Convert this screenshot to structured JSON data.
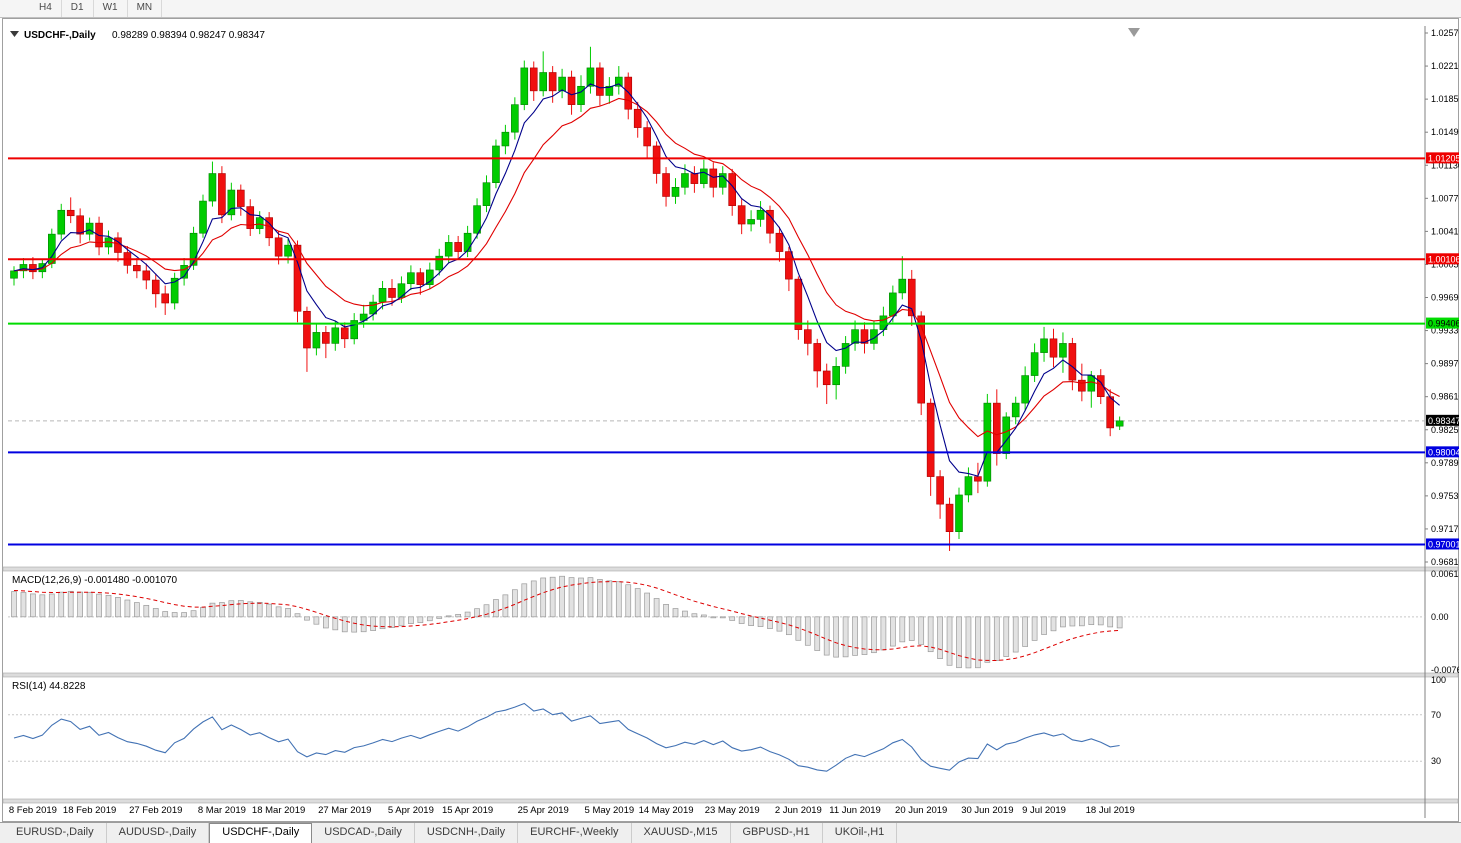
{
  "toolbar": {
    "timeframes": [
      "H4",
      "D1",
      "W1",
      "MN"
    ]
  },
  "chart": {
    "symbol_title": "USDCHF-,Daily",
    "ohlc_line": "0.98289 0.98394 0.98247 0.98347"
  },
  "chart_data": {
    "type": "candlestick",
    "symbol": "USDCHF",
    "timeframe": "Daily",
    "title": "USDCHF-,Daily",
    "current_bar": {
      "open": 0.98289,
      "high": 0.98394,
      "low": 0.98247,
      "close": 0.98347
    },
    "up_color": "#00CC00",
    "down_color": "#F01010",
    "y_axis": {
      "min": 0.9681,
      "max": 1.0257,
      "ticks": [
        "1.02570",
        "1.02210",
        "1.01850",
        "1.01490",
        "1.01130",
        "1.00770",
        "1.00410",
        "1.00050",
        "0.99690",
        "0.99330",
        "0.98970",
        "0.98610",
        "0.98250",
        "0.97890",
        "0.97530",
        "0.97170",
        "0.96810"
      ]
    },
    "x_axis_labels": [
      {
        "text": "8 Feb 2019",
        "i": 2
      },
      {
        "text": "18 Feb 2019",
        "i": 8
      },
      {
        "text": "27 Feb 2019",
        "i": 15
      },
      {
        "text": "8 Mar 2019",
        "i": 22
      },
      {
        "text": "18 Mar 2019",
        "i": 28
      },
      {
        "text": "27 Mar 2019",
        "i": 35
      },
      {
        "text": "5 Apr 2019",
        "i": 42
      },
      {
        "text": "15 Apr 2019",
        "i": 48
      },
      {
        "text": "25 Apr 2019",
        "i": 56
      },
      {
        "text": "5 May 2019",
        "i": 63
      },
      {
        "text": "14 May 2019",
        "i": 69
      },
      {
        "text": "23 May 2019",
        "i": 76
      },
      {
        "text": "2 Jun 2019",
        "i": 83
      },
      {
        "text": "11 Jun 2019",
        "i": 89
      },
      {
        "text": "20 Jun 2019",
        "i": 96
      },
      {
        "text": "30 Jun 2019",
        "i": 103
      },
      {
        "text": "9 Jul 2019",
        "i": 109
      },
      {
        "text": "18 Jul 2019",
        "i": 116
      }
    ],
    "moving_averages": [
      {
        "name": "fast",
        "period": 5,
        "color": "#00008B"
      },
      {
        "name": "slow",
        "period": 11,
        "color": "#E00000"
      }
    ],
    "levels": [
      {
        "value": 1.01205,
        "label": "1.01205",
        "color": "#EE0000",
        "text_color": "#FFFFFF",
        "kind": "resistance"
      },
      {
        "value": 1.00106,
        "label": "1.00106",
        "color": "#EE0000",
        "text_color": "#FFFFFF",
        "kind": "resistance"
      },
      {
        "value": 0.99406,
        "label": "0.99406",
        "color": "#00DC00",
        "text_color": "#000000",
        "kind": "pivot"
      },
      {
        "value": 0.98004,
        "label": "0.98004",
        "color": "#0000E0",
        "text_color": "#FFFFFF",
        "kind": "support"
      },
      {
        "value": 0.97001,
        "label": "0.97001",
        "color": "#0000E0",
        "text_color": "#FFFFFF",
        "kind": "support"
      }
    ],
    "current_price": {
      "value": 0.98347,
      "label": "0.98347",
      "bg": "#000000",
      "text_color": "#FFFFFF"
    },
    "macd": {
      "label": "MACD(12,26,9) -0.001480 -0.001070",
      "fast": 12,
      "slow": 26,
      "signal": 9,
      "value": -0.00148,
      "signal_value": -0.00107,
      "axis_ticks": [
        "0.00613",
        "0.00",
        "-0.00761"
      ],
      "range": [
        -0.00761,
        0.00613
      ],
      "hist_color": "#E2E2E2",
      "signal_color": "#DD0000"
    },
    "rsi": {
      "label": "RSI(14) 44.8228",
      "period": 14,
      "value": 44.8228,
      "axis_ticks": [
        "100",
        "70",
        "30"
      ],
      "levels": [
        70,
        30
      ],
      "range": [
        0,
        100
      ],
      "line_color": "#4272B4"
    },
    "candles": [
      [
        0.999,
        1.0003,
        0.9982,
        0.9998
      ],
      [
        0.9998,
        1.0012,
        0.999,
        1.0005
      ],
      [
        1.0005,
        1.0013,
        0.9989,
        0.9997
      ],
      [
        0.9997,
        1.001,
        0.999,
        1.0006
      ],
      [
        1.0006,
        1.0044,
        1.0001,
        1.0038
      ],
      [
        1.0038,
        1.0071,
        1.0032,
        1.0064
      ],
      [
        1.0064,
        1.0078,
        1.005,
        1.0058
      ],
      [
        1.0058,
        1.0066,
        1.0028,
        1.0038
      ],
      [
        1.0038,
        1.0056,
        1.0031,
        1.005
      ],
      [
        1.005,
        1.0057,
        1.0015,
        1.0024
      ],
      [
        1.0024,
        1.0042,
        1.0016,
        1.0034
      ],
      [
        1.0034,
        1.004,
        1.0008,
        1.0018
      ],
      [
        1.0018,
        1.0025,
        0.9995,
        1.0004
      ],
      [
        1.0004,
        1.0012,
        0.999,
        0.9998
      ],
      [
        0.9998,
        1.0006,
        0.9978,
        0.9988
      ],
      [
        0.9988,
        0.9995,
        0.9958,
        0.9973
      ],
      [
        0.9973,
        0.9982,
        0.995,
        0.9963
      ],
      [
        0.9963,
        0.9996,
        0.9956,
        0.999
      ],
      [
        0.999,
        1.0012,
        0.9982,
        1.0004
      ],
      [
        1.0004,
        1.0046,
        0.9999,
        1.0039
      ],
      [
        1.0039,
        1.0081,
        1.0034,
        1.0074
      ],
      [
        1.0074,
        1.0117,
        1.0068,
        1.0104
      ],
      [
        1.0104,
        1.0112,
        1.005,
        1.0059
      ],
      [
        1.0059,
        1.0094,
        1.0053,
        1.0086
      ],
      [
        1.0086,
        1.0092,
        1.0058,
        1.0068
      ],
      [
        1.0068,
        1.0076,
        1.0036,
        1.0044
      ],
      [
        1.0044,
        1.0063,
        1.0038,
        1.0056
      ],
      [
        1.0056,
        1.0062,
        1.0025,
        1.0034
      ],
      [
        1.0034,
        1.0041,
        1.0005,
        1.0014
      ],
      [
        1.0014,
        1.0033,
        1.0006,
        1.0026
      ],
      [
        1.0026,
        1.0031,
        0.9942,
        0.9954
      ],
      [
        0.9954,
        0.9959,
        0.9888,
        0.9914
      ],
      [
        0.9914,
        0.9941,
        0.9906,
        0.9931
      ],
      [
        0.9931,
        0.9938,
        0.9903,
        0.9919
      ],
      [
        0.9919,
        0.9944,
        0.9911,
        0.9936
      ],
      [
        0.9936,
        0.9942,
        0.9914,
        0.9924
      ],
      [
        0.9924,
        0.9952,
        0.9918,
        0.9944
      ],
      [
        0.9944,
        0.9961,
        0.9936,
        0.9951
      ],
      [
        0.9951,
        0.9972,
        0.9944,
        0.9964
      ],
      [
        0.9964,
        0.9987,
        0.9956,
        0.9979
      ],
      [
        0.9979,
        0.9989,
        0.996,
        0.9969
      ],
      [
        0.9969,
        0.9992,
        0.9963,
        0.9984
      ],
      [
        0.9984,
        1.0004,
        0.9977,
        0.9996
      ],
      [
        0.9996,
        1.0001,
        0.9972,
        0.9983
      ],
      [
        0.9983,
        1.0007,
        0.9978,
        0.9999
      ],
      [
        0.9999,
        1.0022,
        0.9993,
        1.0014
      ],
      [
        1.0014,
        1.0037,
        1.0007,
        1.0029
      ],
      [
        1.0029,
        1.0036,
        1.001,
        1.0019
      ],
      [
        1.0019,
        1.0047,
        1.0013,
        1.0039
      ],
      [
        1.0039,
        1.0077,
        1.0033,
        1.0069
      ],
      [
        1.0069,
        1.0102,
        1.0062,
        1.0094
      ],
      [
        1.0094,
        1.0141,
        1.0088,
        1.0134
      ],
      [
        1.0134,
        1.0157,
        1.0125,
        1.0149
      ],
      [
        1.0149,
        1.0187,
        1.0141,
        1.0179
      ],
      [
        1.0179,
        1.0227,
        1.0173,
        1.0219
      ],
      [
        1.0219,
        1.0226,
        1.0183,
        1.0194
      ],
      [
        1.0194,
        1.0237,
        1.0188,
        1.0214
      ],
      [
        1.0214,
        1.0221,
        1.0181,
        1.0194
      ],
      [
        1.0194,
        1.0218,
        1.0186,
        1.0209
      ],
      [
        1.0209,
        1.0216,
        1.0168,
        1.0179
      ],
      [
        1.0179,
        1.0211,
        1.0171,
        1.0199
      ],
      [
        1.0199,
        1.0242,
        1.0191,
        1.0219
      ],
      [
        1.0219,
        1.0225,
        1.0178,
        1.0189
      ],
      [
        1.0189,
        1.0209,
        1.018,
        1.0199
      ],
      [
        1.0199,
        1.0221,
        1.019,
        1.0209
      ],
      [
        1.0209,
        1.0214,
        1.0163,
        1.0174
      ],
      [
        1.0174,
        1.0182,
        1.0143,
        1.0154
      ],
      [
        1.0154,
        1.0161,
        1.0121,
        1.0134
      ],
      [
        1.0134,
        1.0139,
        1.0093,
        1.0104
      ],
      [
        1.0104,
        1.0111,
        1.0068,
        1.0079
      ],
      [
        1.0079,
        1.0099,
        1.0071,
        1.0089
      ],
      [
        1.0089,
        1.0114,
        1.0081,
        1.0104
      ],
      [
        1.0104,
        1.0112,
        1.0083,
        1.0093
      ],
      [
        1.0093,
        1.0119,
        1.0088,
        1.0109
      ],
      [
        1.0109,
        1.0116,
        1.0078,
        1.0089
      ],
      [
        1.0089,
        1.0112,
        1.0081,
        1.0104
      ],
      [
        1.0104,
        1.0109,
        1.0058,
        1.0069
      ],
      [
        1.0069,
        1.0076,
        1.0038,
        1.0049
      ],
      [
        1.0049,
        1.0064,
        1.0041,
        1.0054
      ],
      [
        1.0054,
        1.0074,
        1.0046,
        1.0064
      ],
      [
        1.0064,
        1.0069,
        1.0028,
        1.0039
      ],
      [
        1.0039,
        1.0046,
        1.0008,
        1.0019
      ],
      [
        1.0019,
        1.0024,
        0.9976,
        0.9989
      ],
      [
        0.9989,
        0.9992,
        0.9923,
        0.9934
      ],
      [
        0.9934,
        0.9944,
        0.9906,
        0.9919
      ],
      [
        0.9919,
        0.9924,
        0.9871,
        0.9889
      ],
      [
        0.9889,
        0.9897,
        0.9853,
        0.9874
      ],
      [
        0.9874,
        0.9904,
        0.9858,
        0.9894
      ],
      [
        0.9894,
        0.9927,
        0.9886,
        0.9919
      ],
      [
        0.9919,
        0.9944,
        0.9911,
        0.9934
      ],
      [
        0.9934,
        0.9942,
        0.9908,
        0.9919
      ],
      [
        0.9919,
        0.9944,
        0.9912,
        0.9934
      ],
      [
        0.9934,
        0.9959,
        0.9927,
        0.9949
      ],
      [
        0.9949,
        0.9982,
        0.9942,
        0.9974
      ],
      [
        0.9974,
        1.0014,
        0.9967,
        0.9989
      ],
      [
        0.9989,
        0.9999,
        0.9938,
        0.9949
      ],
      [
        0.9949,
        0.9954,
        0.9841,
        0.9854
      ],
      [
        0.9854,
        0.9859,
        0.9753,
        0.9774
      ],
      [
        0.9774,
        0.9781,
        0.9728,
        0.9744
      ],
      [
        0.9744,
        0.9751,
        0.9693,
        0.9714
      ],
      [
        0.9714,
        0.9762,
        0.9706,
        0.9754
      ],
      [
        0.9754,
        0.9784,
        0.9746,
        0.9774
      ],
      [
        0.9774,
        0.9789,
        0.9756,
        0.9769
      ],
      [
        0.9769,
        0.9864,
        0.9763,
        0.9854
      ],
      [
        0.9854,
        0.9869,
        0.9786,
        0.9799
      ],
      [
        0.9799,
        0.9844,
        0.9793,
        0.9839
      ],
      [
        0.9839,
        0.9861,
        0.9831,
        0.9854
      ],
      [
        0.9854,
        0.9894,
        0.9846,
        0.9884
      ],
      [
        0.9884,
        0.9919,
        0.9877,
        0.9909
      ],
      [
        0.9909,
        0.9937,
        0.9899,
        0.9924
      ],
      [
        0.9924,
        0.9935,
        0.9893,
        0.9904
      ],
      [
        0.9904,
        0.9931,
        0.9887,
        0.9919
      ],
      [
        0.9919,
        0.9925,
        0.9868,
        0.9879
      ],
      [
        0.9879,
        0.9897,
        0.9856,
        0.9867
      ],
      [
        0.9867,
        0.9889,
        0.9849,
        0.9884
      ],
      [
        0.9884,
        0.9891,
        0.9853,
        0.9861
      ],
      [
        0.9861,
        0.9869,
        0.9818,
        0.9827
      ],
      [
        0.98289,
        0.98394,
        0.98247,
        0.98347
      ]
    ]
  },
  "tabbar": {
    "tabs": [
      {
        "label": "EURUSD-,Daily",
        "active": false
      },
      {
        "label": "AUDUSD-,Daily",
        "active": false
      },
      {
        "label": "USDCHF-,Daily",
        "active": true
      },
      {
        "label": "USDCAD-,Daily",
        "active": false
      },
      {
        "label": "USDCNH-,Daily",
        "active": false
      },
      {
        "label": "EURCHF-,Weekly",
        "active": false
      },
      {
        "label": "XAUUSD-,M15",
        "active": false
      },
      {
        "label": "GBPUSD-,H1",
        "active": false
      },
      {
        "label": "UKOil-,H1",
        "active": false
      }
    ]
  }
}
